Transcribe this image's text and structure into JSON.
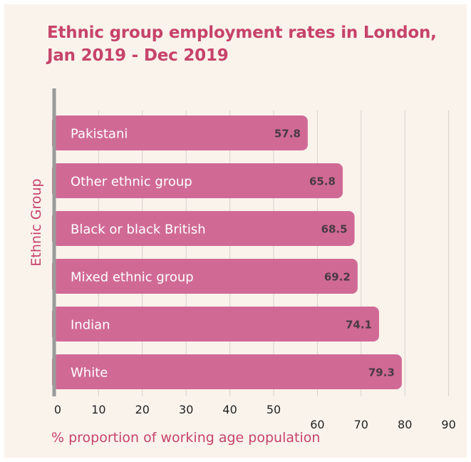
{
  "chart_data": {
    "type": "bar",
    "orientation": "horizontal",
    "title": "Ethnic group employment rates in London, Jan 2019 - Dec 2019",
    "xlabel": "% proportion of working age population",
    "ylabel": "Ethnic Group",
    "categories": [
      "Pakistani",
      "Other ethnic group",
      "Black or black British",
      "Mixed ethnic group",
      "Indian",
      "White"
    ],
    "values": [
      57.8,
      65.8,
      68.5,
      69.2,
      74.1,
      79.3
    ],
    "value_labels": [
      "57.8",
      "65.8",
      "68.5",
      "69.2",
      "74.1",
      "79.3"
    ],
    "xlim": [
      0,
      90
    ],
    "xticks": [
      "0",
      "10",
      "20",
      "30",
      "40",
      "50",
      "60",
      "70",
      "80",
      "90"
    ],
    "grid": "vertical",
    "colors": {
      "bar": "#d06a95",
      "title": "#c6436a",
      "label_text": "#ffffff",
      "value_text": "#4a3a44",
      "grid": "#d8d0cc",
      "axis": "#9a9a9a",
      "background": "#faf3ec"
    }
  }
}
